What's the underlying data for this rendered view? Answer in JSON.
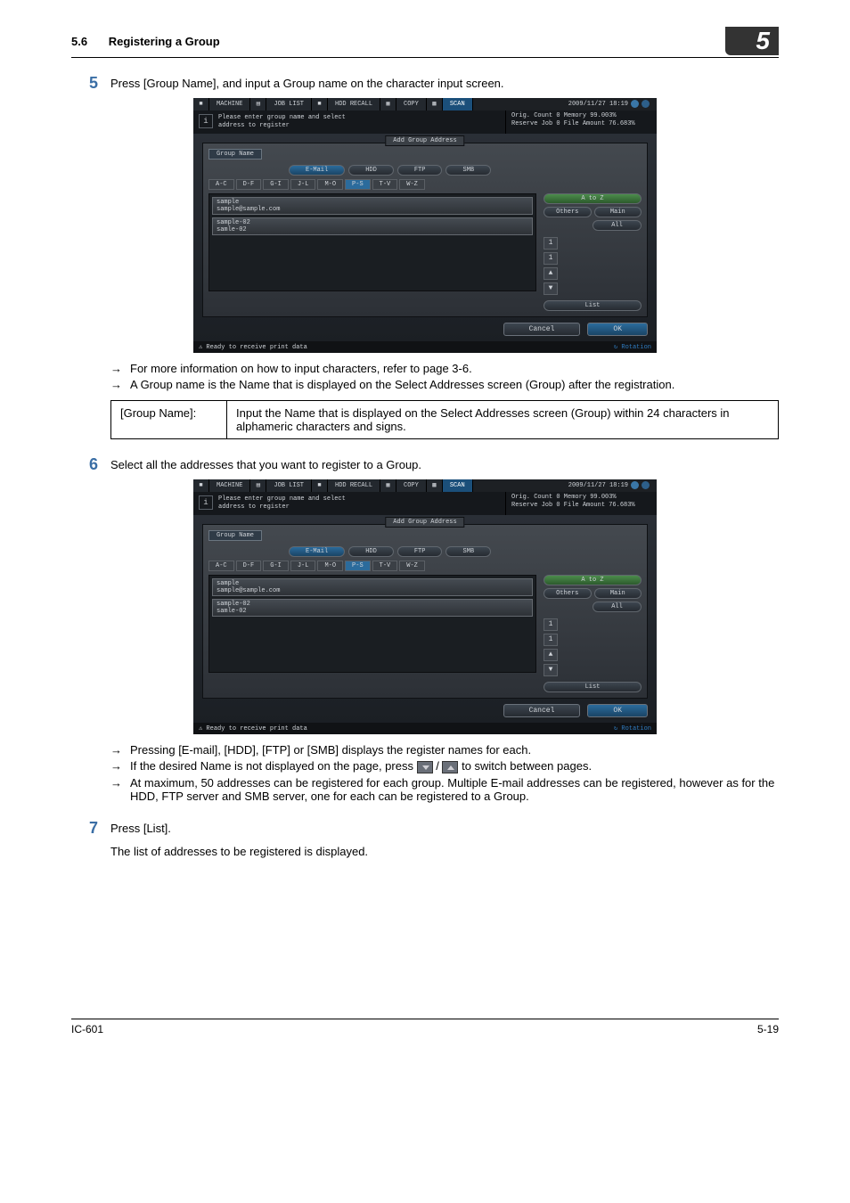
{
  "header": {
    "section_number": "5.6",
    "section_title": "Registering a Group",
    "chapter_badge": "5"
  },
  "step5": {
    "num": "5",
    "text": "Press [Group Name], and input a Group name on the character input screen.",
    "bullets": [
      "For more information on how to input characters, refer to page 3-6.",
      "A Group name is the Name that is displayed on the Select Addresses screen (Group) after the registration."
    ],
    "table": {
      "c1": "[Group Name]:",
      "c2": "Input the Name that is displayed on the Select Addresses screen (Group) within 24 characters in alphameric characters and signs."
    }
  },
  "step6": {
    "num": "6",
    "text": "Select all the addresses that you want to register to a Group.",
    "bullets": [
      "Pressing [E-mail], [HDD], [FTP] or [SMB] displays the register names for each.",
      "At maximum, 50 addresses can be registered for each group. Multiple E-mail addresses can be registered, however as for the HDD, FTP server and SMB server, one for each can be registered to a Group."
    ],
    "bullet_mid_pre": "If the desired Name is not displayed on the page, press ",
    "bullet_mid_post": " to switch between pages."
  },
  "step7": {
    "num": "7",
    "text": "Press [List].",
    "followup": "The list of addresses to be registered is displayed."
  },
  "footer": {
    "left": "IC-601",
    "right": "5-19"
  },
  "panel": {
    "tabs": {
      "machine": "MACHINE",
      "joblist": "JOB LIST",
      "hddrecall": "HDD RECALL",
      "copy": "COPY",
      "scan": "SCAN",
      "time": "2009/11/27 18:19"
    },
    "info_msg_l1": "Please enter group name and select",
    "info_msg_l2": "address to register",
    "counters": {
      "l1": "Orig. Count       0  Memory      99.003%",
      "l2": "Reserve Job       0  File Amount 76.683%"
    },
    "panel_title": "Add Group Address",
    "group_name_btn": "Group Name",
    "pills": {
      "email": "E-Mail",
      "hdd": "HDD",
      "ftp": "FTP",
      "smb": "SMB"
    },
    "alpha": [
      "A-C",
      "D-F",
      "G-I",
      "J-L",
      "M-O",
      "P-S",
      "T-V",
      "W-Z"
    ],
    "items": [
      {
        "l1": "sample",
        "l2": "sample@sample.com"
      },
      {
        "l1": "sample-02",
        "l2": "samle-02"
      }
    ],
    "side": {
      "atoz": "A to Z",
      "others": "Others",
      "main": "Main",
      "all": "All",
      "list": "List"
    },
    "cancel": "Cancel",
    "ok": "OK",
    "status": "Ready to receive print data",
    "rotation": "Rotation"
  }
}
